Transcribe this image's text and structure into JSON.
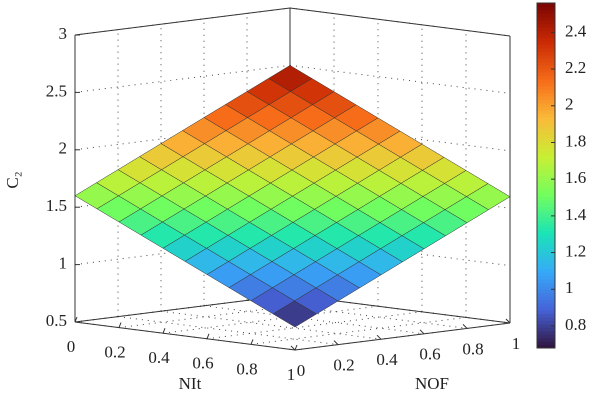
{
  "chart_data": {
    "type": "surface",
    "xlabel": "NIt",
    "ylabel": "NOF",
    "zlabel": "C₂",
    "x": [
      0,
      0.1,
      0.2,
      0.3,
      0.4,
      0.5,
      0.6,
      0.7,
      0.8,
      0.9,
      1
    ],
    "y": [
      0,
      0.1,
      0.2,
      0.3,
      0.4,
      0.5,
      0.6,
      0.7,
      0.8,
      0.9,
      1
    ],
    "z": [
      [
        1.6,
        1.69,
        1.78,
        1.87,
        1.96,
        2.05,
        2.14,
        2.23,
        2.32,
        2.41,
        2.5
      ],
      [
        1.51,
        1.6,
        1.69,
        1.78,
        1.87,
        1.96,
        2.05,
        2.14,
        2.23,
        2.32,
        2.41
      ],
      [
        1.42,
        1.51,
        1.6,
        1.69,
        1.78,
        1.87,
        1.96,
        2.05,
        2.14,
        2.23,
        2.32
      ],
      [
        1.33,
        1.42,
        1.51,
        1.6,
        1.69,
        1.78,
        1.87,
        1.96,
        2.05,
        2.14,
        2.23
      ],
      [
        1.24,
        1.33,
        1.42,
        1.51,
        1.6,
        1.69,
        1.78,
        1.87,
        1.96,
        2.05,
        2.14
      ],
      [
        1.15,
        1.24,
        1.33,
        1.42,
        1.51,
        1.6,
        1.69,
        1.78,
        1.87,
        1.96,
        2.05
      ],
      [
        1.06,
        1.15,
        1.24,
        1.33,
        1.42,
        1.51,
        1.6,
        1.69,
        1.78,
        1.87,
        1.96
      ],
      [
        0.97,
        1.06,
        1.15,
        1.24,
        1.33,
        1.42,
        1.51,
        1.6,
        1.69,
        1.78,
        1.87
      ],
      [
        0.88,
        0.97,
        1.06,
        1.15,
        1.24,
        1.33,
        1.42,
        1.51,
        1.6,
        1.69,
        1.78
      ],
      [
        0.79,
        0.88,
        0.97,
        1.06,
        1.15,
        1.24,
        1.33,
        1.42,
        1.51,
        1.6,
        1.69
      ],
      [
        0.7,
        0.79,
        0.88,
        0.97,
        1.06,
        1.15,
        1.24,
        1.33,
        1.42,
        1.51,
        1.6
      ]
    ],
    "xlim": [
      0,
      1
    ],
    "ylim": [
      0,
      1
    ],
    "zlim": [
      0.5,
      3
    ],
    "xticks": [
      0,
      0.2,
      0.4,
      0.6,
      0.8,
      1
    ],
    "yticks": [
      0,
      0.2,
      0.4,
      0.6,
      0.8,
      1
    ],
    "zticks": [
      0.5,
      1,
      1.5,
      2,
      2.5,
      3
    ],
    "clim": [
      0.68,
      2.56
    ],
    "colorbar_ticks": [
      0.8,
      1,
      1.2,
      1.4,
      1.6,
      1.8,
      2,
      2.2,
      2.4
    ],
    "colormap": [
      "#30123b",
      "#4662d7",
      "#36aaf9",
      "#1ae4b6",
      "#72fe5e",
      "#c8ef34",
      "#faba39",
      "#f66b19",
      "#ca2a04",
      "#7a0403"
    ],
    "grid": true
  }
}
